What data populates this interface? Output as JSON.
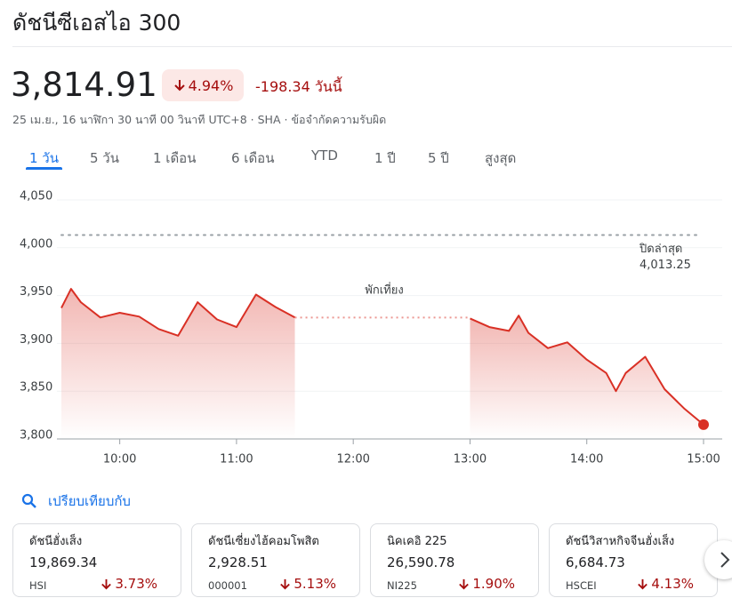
{
  "header": {
    "title": "ดัชนีซีเอสไอ 300"
  },
  "quote": {
    "price": "3,814.91",
    "change_percent": "4.94%",
    "change": "-198.34",
    "period": "วันนี้",
    "timestamp": "25 เม.ย., 16 นาฬิกา 30 นาที 00 วินาที UTC+8",
    "exchange": "SHA",
    "disclaimer": "ข้อจำกัดความรับผิด"
  },
  "tabs": {
    "items": [
      "1 วัน",
      "5 วัน",
      "1 เดือน",
      "6 เดือน",
      "YTD",
      "1 ปี",
      "5 ปี",
      "สูงสุด"
    ],
    "active": 0
  },
  "chart_data": {
    "type": "line",
    "x": [
      "09:30",
      "09:35",
      "09:40",
      "09:50",
      "10:00",
      "10:10",
      "10:20",
      "10:30",
      "10:40",
      "10:50",
      "11:00",
      "11:10",
      "11:20",
      "11:30",
      "12:00",
      "13:00",
      "13:10",
      "13:20",
      "13:25",
      "13:30",
      "13:40",
      "13:50",
      "14:00",
      "14:10",
      "14:15",
      "14:20",
      "14:30",
      "14:40",
      "14:50",
      "15:00"
    ],
    "series": [
      {
        "color": "#d93025",
        "values": [
          3937,
          3957,
          3943,
          3927,
          3932,
          3928,
          3915,
          3908,
          3943,
          3925,
          3917,
          3951,
          3938,
          3927,
          null,
          3926,
          3917,
          3913,
          3929,
          3911,
          3895,
          3901,
          3883,
          3869,
          3850,
          3869,
          3886,
          3852,
          3832,
          3815
        ]
      }
    ],
    "xlim": [
      "09:30",
      "15:00"
    ],
    "xticks": [
      "10:00",
      "11:00",
      "12:00",
      "13:00",
      "14:00",
      "15:00"
    ],
    "ylim": [
      3800,
      4050
    ],
    "yticks": [
      {
        "value": 3800,
        "label": "3,800"
      },
      {
        "value": 3850,
        "label": "3,850"
      },
      {
        "value": 3900,
        "label": "3,900"
      },
      {
        "value": 3950,
        "label": "3,950"
      },
      {
        "value": 4000,
        "label": "4,000"
      },
      {
        "value": 4050,
        "label": "4,050"
      }
    ],
    "grid": true,
    "break_label": "พักเที่ยง",
    "previous_close": {
      "label": "ปิดล่าสุด",
      "value": 4013.25,
      "value_label": "4,013.25"
    }
  },
  "compare": {
    "title": "เปรียบเทียบกับ",
    "cards": [
      {
        "name": "ดัชนีฮั่งเส็ง",
        "value": "19,869.34",
        "ticker": "HSI",
        "change": "3.73%"
      },
      {
        "name": "ดัชนีเซี่ยงไฮ้คอมโพสิต",
        "value": "2,928.51",
        "ticker": "000001",
        "change": "5.13%"
      },
      {
        "name": "นิคเคอิ 225",
        "value": "26,590.78",
        "ticker": "NI225",
        "change": "1.90%"
      },
      {
        "name": "ดัชนีวิสาหกิจจีนฮั่งเส็ง",
        "value": "6,684.73",
        "ticker": "HSCEI",
        "change": "4.13%"
      }
    ]
  }
}
